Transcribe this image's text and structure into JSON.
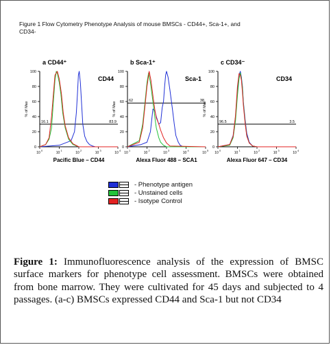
{
  "figure_title": "Figure 1 Flow Cytometry Phenotype Analysis of mouse BMSCs - CD44+, Sca-1+, and CD34-",
  "colors": {
    "phenotype": "#1f2fd6",
    "unstained": "#22c23a",
    "isotype": "#e32222",
    "axis": "#000000"
  },
  "chart_data": [
    {
      "type": "line",
      "panel_label": "a CD44⁺",
      "marker": "CD44",
      "xlabel": "Pacific Blue – CD44",
      "ylabel": "% of Max",
      "xscale": "log",
      "xlim": [
        1,
        10000
      ],
      "ylim": [
        0,
        100
      ],
      "yticks": [
        0,
        20,
        40,
        60,
        80,
        100
      ],
      "gate_y": 30,
      "gate_left": "16.1",
      "gate_right": "83.9",
      "series": [
        {
          "name": "Phenotype antigen",
          "color": "phenotype",
          "x": [
            1,
            10,
            40,
            60,
            75,
            85,
            95,
            105,
            120,
            140,
            160,
            200,
            260,
            350,
            500,
            700,
            10000
          ],
          "y": [
            0,
            2,
            8,
            20,
            45,
            70,
            95,
            100,
            85,
            55,
            30,
            14,
            7,
            3,
            1,
            0,
            0
          ]
        },
        {
          "name": "Unstained cells",
          "color": "unstained",
          "x": [
            1,
            2,
            3,
            4,
            5,
            6,
            7,
            8,
            10,
            12,
            15,
            20,
            30,
            50,
            100,
            10000
          ],
          "y": [
            0,
            3,
            10,
            25,
            60,
            88,
            100,
            97,
            85,
            70,
            45,
            25,
            10,
            3,
            0,
            0
          ]
        },
        {
          "name": "Isotype Control",
          "color": "isotype",
          "x": [
            1,
            2,
            3,
            4,
            5,
            6,
            8,
            10,
            13,
            16,
            20,
            30,
            50,
            100,
            10000
          ],
          "y": [
            0,
            3,
            12,
            40,
            70,
            95,
            100,
            90,
            70,
            45,
            28,
            12,
            4,
            0,
            0
          ]
        }
      ]
    },
    {
      "type": "line",
      "panel_label": "b Sca-1⁺",
      "marker": "Sca-1",
      "xlabel": "Alexa Fluor 488 – SCA1",
      "ylabel": "% of Max",
      "xscale": "log",
      "xlim": [
        10,
        100000
      ],
      "ylim": [
        0,
        100
      ],
      "yticks": [
        0,
        20,
        40,
        60,
        80,
        100
      ],
      "gate_y": 58,
      "gate_left": "62",
      "gate_right": "38",
      "series": [
        {
          "name": "Phenotype antigen",
          "color": "phenotype",
          "x": [
            10,
            50,
            100,
            150,
            200,
            250,
            300,
            400,
            500,
            600,
            700,
            800,
            900,
            1000,
            1200,
            1500,
            2000,
            2500,
            3000,
            4000,
            5000,
            7000,
            100000
          ],
          "y": [
            0,
            3,
            6,
            20,
            50,
            48,
            40,
            30,
            32,
            52,
            60,
            80,
            95,
            100,
            92,
            75,
            50,
            30,
            15,
            6,
            2,
            0,
            0
          ]
        },
        {
          "name": "Unstained cells",
          "color": "unstained",
          "x": [
            10,
            40,
            60,
            80,
            100,
            120,
            150,
            200,
            250,
            300,
            400,
            500,
            700,
            1000,
            100000
          ],
          "y": [
            0,
            8,
            30,
            60,
            85,
            98,
            85,
            60,
            40,
            25,
            12,
            6,
            2,
            0,
            0
          ]
        },
        {
          "name": "Isotype Control",
          "color": "isotype",
          "x": [
            10,
            40,
            60,
            80,
            100,
            130,
            160,
            200,
            250,
            300,
            350,
            400,
            500,
            700,
            1000,
            1500,
            100000
          ],
          "y": [
            0,
            6,
            25,
            55,
            80,
            100,
            88,
            68,
            50,
            38,
            34,
            30,
            22,
            12,
            5,
            1,
            0
          ]
        }
      ]
    },
    {
      "type": "line",
      "panel_label": "c CD34⁻",
      "marker": "CD34",
      "xlabel": "Alexa Fluor 647 – CD34",
      "ylabel": "% of Max",
      "xscale": "log",
      "xlim": [
        1,
        10000
      ],
      "ylim": [
        0,
        100
      ],
      "yticks": [
        0,
        20,
        40,
        60,
        80,
        100
      ],
      "gate_y": 30,
      "gate_left": "96.5",
      "gate_right": "3.5",
      "series": [
        {
          "name": "Phenotype antigen",
          "color": "phenotype",
          "x": [
            1,
            4,
            6,
            8,
            10,
            12,
            14,
            16,
            18,
            20,
            25,
            30,
            40,
            60,
            100,
            10000
          ],
          "y": [
            0,
            3,
            15,
            40,
            75,
            95,
            100,
            92,
            80,
            60,
            35,
            18,
            6,
            1,
            0,
            0
          ]
        },
        {
          "name": "Unstained cells",
          "color": "unstained",
          "x": [
            1,
            4,
            6,
            8,
            10,
            12,
            14,
            16,
            18,
            20,
            25,
            30,
            40,
            60,
            100,
            10000
          ],
          "y": [
            0,
            2,
            12,
            35,
            68,
            90,
            98,
            90,
            78,
            58,
            32,
            15,
            5,
            1,
            0,
            0
          ]
        },
        {
          "name": "Isotype Control",
          "color": "isotype",
          "x": [
            1,
            4,
            6,
            8,
            10,
            12,
            14,
            16,
            18,
            20,
            25,
            30,
            40,
            60,
            100,
            10000
          ],
          "y": [
            0,
            3,
            14,
            42,
            80,
            97,
            95,
            88,
            72,
            55,
            30,
            14,
            5,
            1,
            0,
            0
          ]
        }
      ]
    }
  ],
  "legend": [
    {
      "label": "- Phenotype antigen",
      "color": "phenotype"
    },
    {
      "label": "- Unstained cells",
      "color": "unstained"
    },
    {
      "label": "- Isotype Control",
      "color": "isotype"
    }
  ],
  "caption": {
    "label": "Figure 1:",
    "text": " Immunofluorescence analysis of the expression of BMSC surface markers for phenotype cell assessment. BMSCs were obtained from bone marrow. They were cultivated for 45 days and subjected to 4 passages. (a-c) BMSCs expressed CD44 and Sca-1 but not CD34"
  }
}
